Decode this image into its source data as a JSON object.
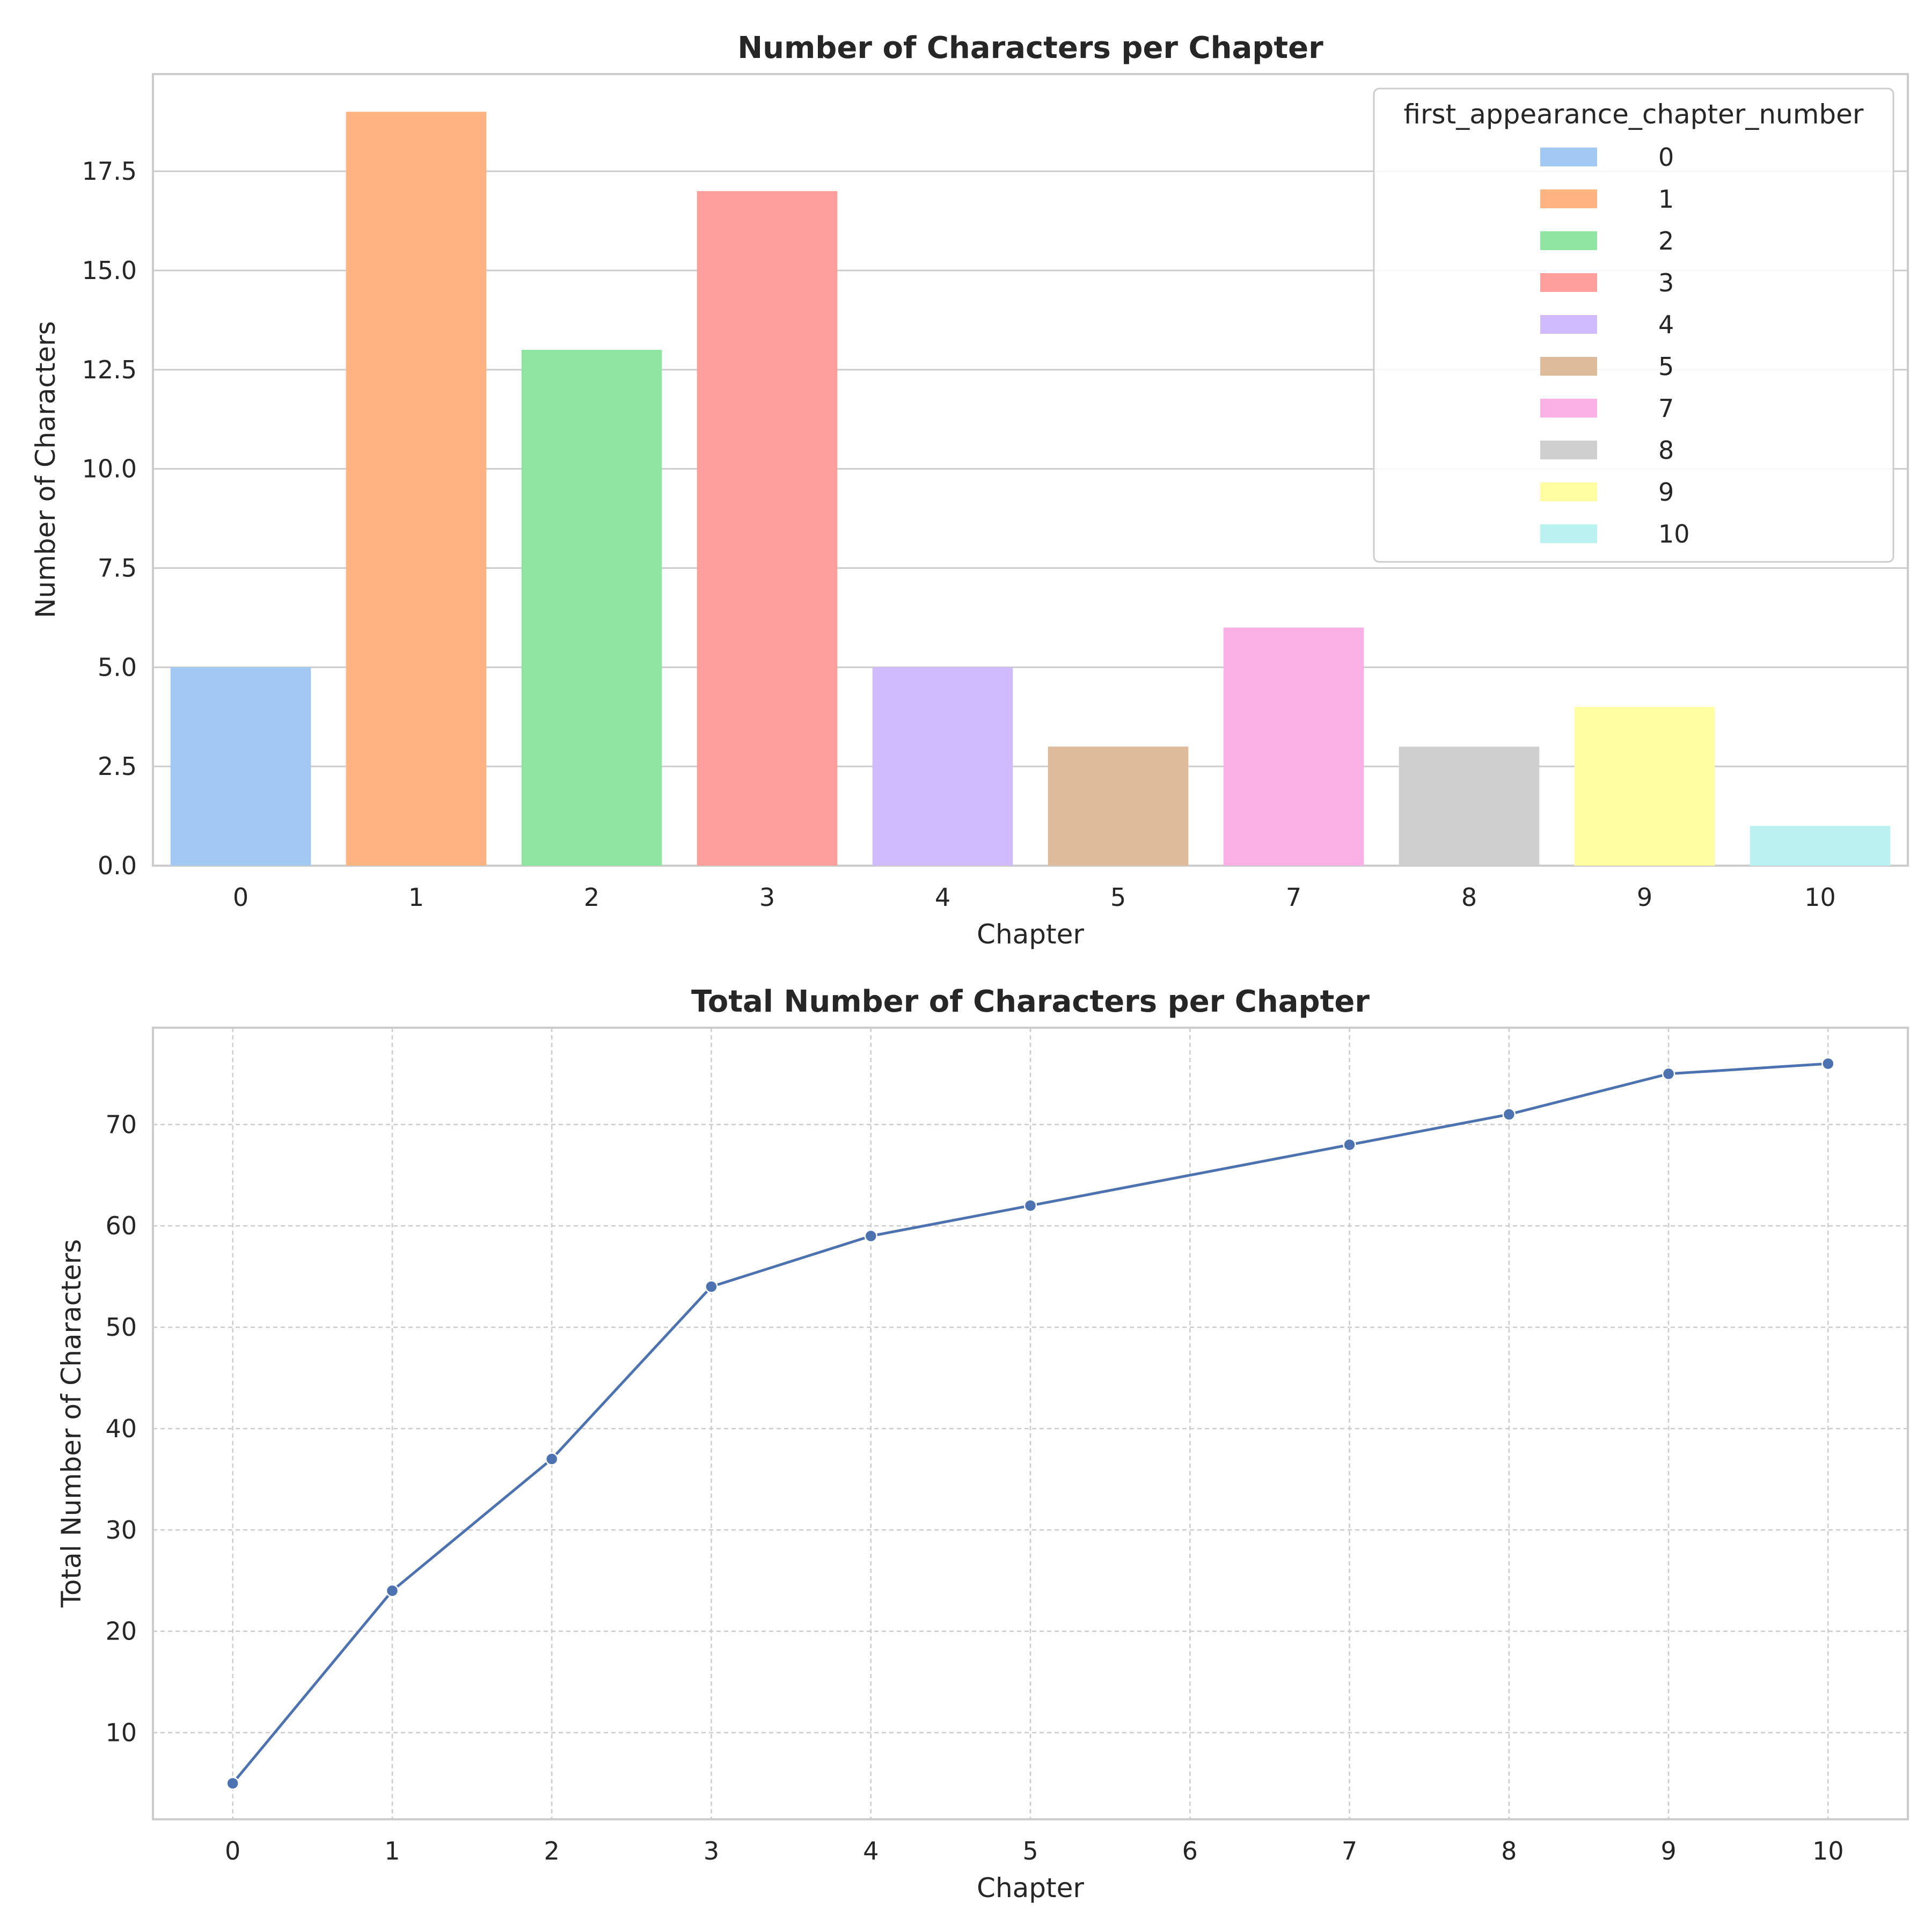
{
  "chart_data": [
    {
      "type": "bar",
      "title": "Number of Characters per Chapter",
      "xlabel": "Chapter",
      "ylabel": "Number of Characters",
      "categories": [
        "0",
        "1",
        "2",
        "3",
        "4",
        "5",
        "7",
        "8",
        "9",
        "10"
      ],
      "values": [
        5,
        19,
        13,
        17,
        5,
        3,
        6,
        3,
        4,
        1
      ],
      "ylim": [
        0,
        19.95
      ],
      "yticks": [
        "0.0",
        "2.5",
        "5.0",
        "7.5",
        "10.0",
        "12.5",
        "15.0",
        "17.5"
      ],
      "grid": "horizontal",
      "legend": {
        "title": "first_appearance_chapter_number",
        "placement": "top-right",
        "entries": [
          "0",
          "1",
          "2",
          "3",
          "4",
          "5",
          "7",
          "8",
          "9",
          "10"
        ]
      },
      "colors": [
        "#a1c9f4",
        "#ffb482",
        "#8de5a1",
        "#ff9f9b",
        "#d0bbff",
        "#debb9b",
        "#fab0e4",
        "#cfcfcf",
        "#fffea3",
        "#b9f2f0"
      ]
    },
    {
      "type": "line",
      "title": "Total Number of Characters per Chapter",
      "xlabel": "Chapter",
      "ylabel": "Total Number of Characters",
      "x": [
        0,
        1,
        2,
        3,
        4,
        5,
        7,
        8,
        9,
        10
      ],
      "y": [
        5,
        24,
        37,
        54,
        59,
        62,
        68,
        71,
        75,
        76
      ],
      "xlim": [
        -0.5,
        10.5
      ],
      "ylim": [
        1.45,
        79.55
      ],
      "xticks": [
        "0",
        "1",
        "2",
        "3",
        "4",
        "5",
        "6",
        "7",
        "8",
        "9",
        "10"
      ],
      "yticks": [
        "10",
        "20",
        "30",
        "40",
        "50",
        "60",
        "70"
      ],
      "grid": "both, dashed",
      "marker": "circle",
      "color": "#4c72b0"
    }
  ]
}
